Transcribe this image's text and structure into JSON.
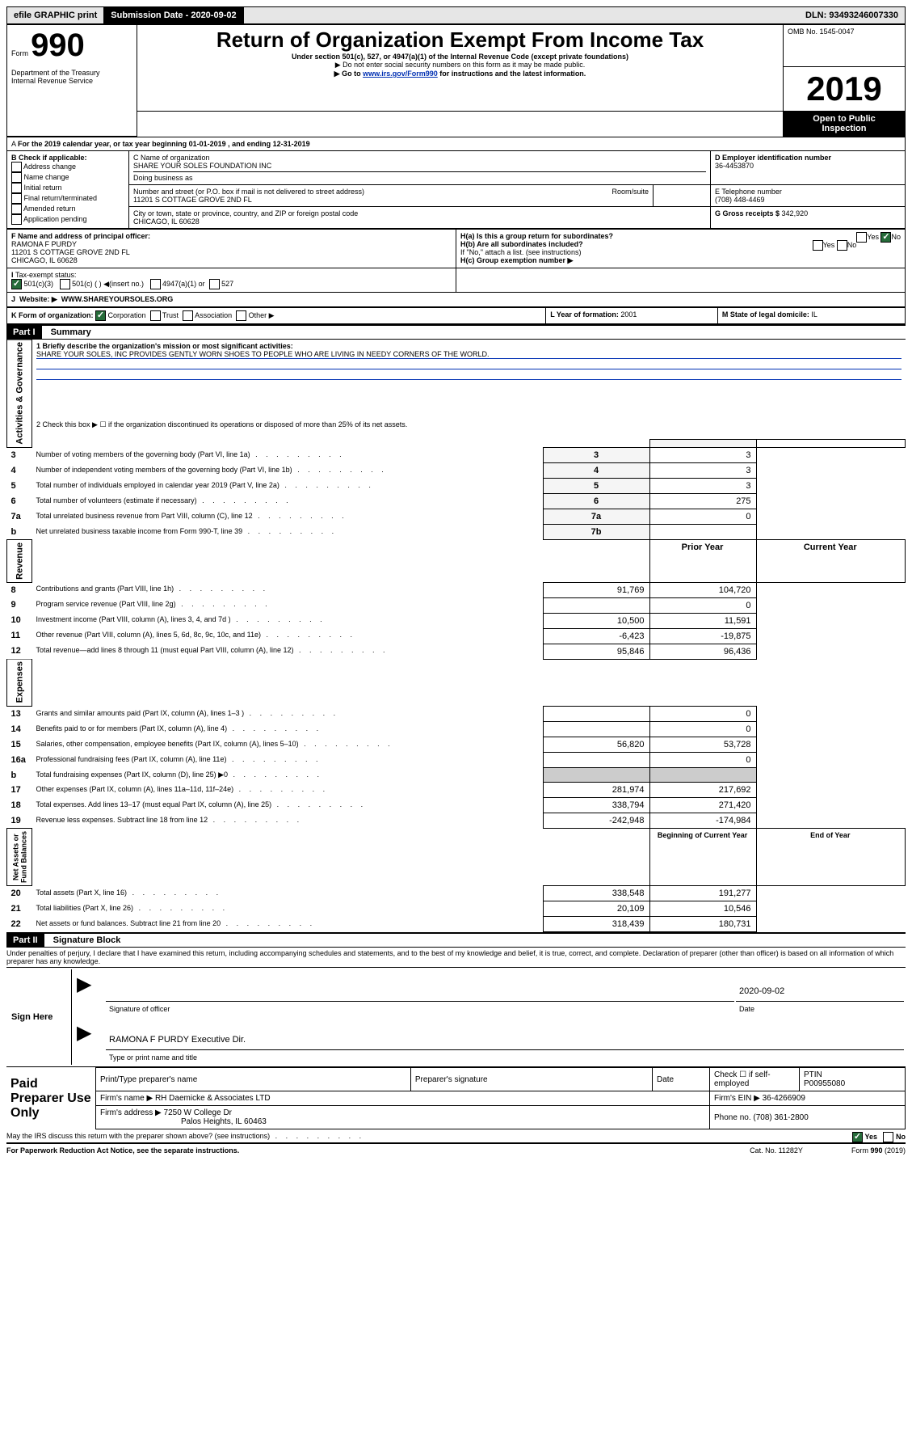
{
  "topbar": {
    "efile": "efile GRAPHIC print",
    "subdate_label": "Submission Date - ",
    "subdate": "2020-09-02",
    "dln_label": "DLN: ",
    "dln": "93493246007330"
  },
  "header": {
    "form_label": "Form",
    "form_number": "990",
    "dept": "Department of the Treasury\nInternal Revenue Service",
    "title": "Return of Organization Exempt From Income Tax",
    "subtitle": "Under section 501(c), 527, or 4947(a)(1) of the Internal Revenue Code (except private foundations)",
    "note1": "▶ Do not enter social security numbers on this form as it may be made public.",
    "note2_pre": "▶ Go to ",
    "note2_link": "www.irs.gov/Form990",
    "note2_post": " for instructions and the latest information.",
    "omb": "OMB No. 1545-0047",
    "year": "2019",
    "inspection": "Open to Public\nInspection"
  },
  "sectionA": {
    "line": "For the 2019 calendar year, or tax year beginning 01-01-2019   , and ending 12-31-2019",
    "b_label": "B Check if applicable:",
    "b_opts": [
      "Address change",
      "Name change",
      "Initial return",
      "Final return/terminated",
      "Amended return",
      "Application pending"
    ],
    "c_label": "C Name of organization",
    "c_name": "SHARE YOUR SOLES FOUNDATION INC",
    "dba_label": "Doing business as",
    "addr_label": "Number and street (or P.O. box if mail is not delivered to street address)",
    "room_label": "Room/suite",
    "addr": "11201 S COTTAGE GROVE 2ND FL",
    "city_label": "City or town, state or province, country, and ZIP or foreign postal code",
    "city": "CHICAGO, IL  60628",
    "d_label": "D Employer identification number",
    "d_val": "36-4453870",
    "e_label": "E Telephone number",
    "e_val": "(708) 448-4469",
    "g_label": "G Gross receipts $ ",
    "g_val": "342,920",
    "f_label": "F  Name and address of principal officer:",
    "f_name": "RAMONA F PURDY",
    "f_addr1": "11201 S COTTAGE GROVE 2ND FL",
    "f_addr2": "CHICAGO, IL  60628",
    "ha_label": "H(a)  Is this a group return for subordinates?",
    "hb_label": "H(b)  Are all subordinates included?",
    "hb_note": "If \"No,\" attach a list. (see instructions)",
    "hc_label": "H(c)  Group exemption number ▶",
    "i_label": "Tax-exempt status:",
    "i_501c3": "501(c)(3)",
    "i_501c": "501(c) (  ) ◀(insert no.)",
    "i_4947": "4947(a)(1) or",
    "i_527": "527",
    "j_label": "Website: ▶",
    "j_val": "WWW.SHAREYOURSOLES.ORG",
    "k_label": "K Form of organization:",
    "k_opts": [
      "Corporation",
      "Trust",
      "Association",
      "Other ▶"
    ],
    "l_label": "L Year of formation: ",
    "l_val": "2001",
    "m_label": "M State of legal domicile: ",
    "m_val": "IL"
  },
  "part1": {
    "header": "Part I",
    "title": "Summary",
    "q1_label": "1  Briefly describe the organization's mission or most significant activities:",
    "q1_text": "SHARE YOUR SOLES, INC PROVIDES GENTLY WORN SHOES TO PEOPLE WHO ARE LIVING IN NEEDY CORNERS OF THE WORLD.",
    "q2": "2   Check this box ▶ ☐  if the organization discontinued its operations or disposed of more than 25% of its net assets.",
    "lines_governance": [
      {
        "n": "3",
        "label": "Number of voting members of the governing body (Part VI, line 1a)",
        "box": "3",
        "val": "3"
      },
      {
        "n": "4",
        "label": "Number of independent voting members of the governing body (Part VI, line 1b)",
        "box": "4",
        "val": "3"
      },
      {
        "n": "5",
        "label": "Total number of individuals employed in calendar year 2019 (Part V, line 2a)",
        "box": "5",
        "val": "3"
      },
      {
        "n": "6",
        "label": "Total number of volunteers (estimate if necessary)",
        "box": "6",
        "val": "275"
      },
      {
        "n": "7a",
        "label": "Total unrelated business revenue from Part VIII, column (C), line 12",
        "box": "7a",
        "val": "0"
      },
      {
        "n": "b",
        "label": "Net unrelated business taxable income from Form 990-T, line 39",
        "box": "7b",
        "val": ""
      }
    ],
    "col_prior": "Prior Year",
    "col_current": "Current Year",
    "lines_revenue": [
      {
        "n": "8",
        "label": "Contributions and grants (Part VIII, line 1h)",
        "prior": "91,769",
        "cur": "104,720"
      },
      {
        "n": "9",
        "label": "Program service revenue (Part VIII, line 2g)",
        "prior": "",
        "cur": "0"
      },
      {
        "n": "10",
        "label": "Investment income (Part VIII, column (A), lines 3, 4, and 7d )",
        "prior": "10,500",
        "cur": "11,591"
      },
      {
        "n": "11",
        "label": "Other revenue (Part VIII, column (A), lines 5, 6d, 8c, 9c, 10c, and 11e)",
        "prior": "-6,423",
        "cur": "-19,875"
      },
      {
        "n": "12",
        "label": "Total revenue—add lines 8 through 11 (must equal Part VIII, column (A), line 12)",
        "prior": "95,846",
        "cur": "96,436"
      }
    ],
    "lines_expenses": [
      {
        "n": "13",
        "label": "Grants and similar amounts paid (Part IX, column (A), lines 1–3 )",
        "prior": "",
        "cur": "0"
      },
      {
        "n": "14",
        "label": "Benefits paid to or for members (Part IX, column (A), line 4)",
        "prior": "",
        "cur": "0"
      },
      {
        "n": "15",
        "label": "Salaries, other compensation, employee benefits (Part IX, column (A), lines 5–10)",
        "prior": "56,820",
        "cur": "53,728"
      },
      {
        "n": "16a",
        "label": "Professional fundraising fees (Part IX, column (A), line 11e)",
        "prior": "",
        "cur": "0"
      },
      {
        "n": "b",
        "label": "Total fundraising expenses (Part IX, column (D), line 25) ▶0",
        "prior": "GRAY",
        "cur": "GRAY"
      },
      {
        "n": "17",
        "label": "Other expenses (Part IX, column (A), lines 11a–11d, 11f–24e)",
        "prior": "281,974",
        "cur": "217,692"
      },
      {
        "n": "18",
        "label": "Total expenses. Add lines 13–17 (must equal Part IX, column (A), line 25)",
        "prior": "338,794",
        "cur": "271,420"
      },
      {
        "n": "19",
        "label": "Revenue less expenses. Subtract line 18 from line 12",
        "prior": "-242,948",
        "cur": "-174,984"
      }
    ],
    "col_begin": "Beginning of Current Year",
    "col_end": "End of Year",
    "lines_net": [
      {
        "n": "20",
        "label": "Total assets (Part X, line 16)",
        "prior": "338,548",
        "cur": "191,277"
      },
      {
        "n": "21",
        "label": "Total liabilities (Part X, line 26)",
        "prior": "20,109",
        "cur": "10,546"
      },
      {
        "n": "22",
        "label": "Net assets or fund balances. Subtract line 21 from line 20",
        "prior": "318,439",
        "cur": "180,731"
      }
    ],
    "vlabels": {
      "gov": "Activities & Governance",
      "rev": "Revenue",
      "exp": "Expenses",
      "net": "Net Assets or\nFund Balances"
    }
  },
  "part2": {
    "header": "Part II",
    "title": "Signature Block",
    "perjury": "Under penalties of perjury, I declare that I have examined this return, including accompanying schedules and statements, and to the best of my knowledge and belief, it is true, correct, and complete. Declaration of preparer (other than officer) is based on all information of which preparer has any knowledge.",
    "sign_here": "Sign Here",
    "sig_date": "2020-09-02",
    "sig_label": "Signature of officer",
    "date_label": "Date",
    "officer_name": "RAMONA F PURDY  Executive Dir.",
    "officer_label": "Type or print name and title",
    "paid": "Paid Preparer Use Only",
    "prep_name_label": "Print/Type preparer's name",
    "prep_sig_label": "Preparer's signature",
    "prep_date_label": "Date",
    "prep_check_label": "Check ☐ if self-employed",
    "ptin_label": "PTIN",
    "ptin": "P00955080",
    "firm_name_label": "Firm's name    ▶ ",
    "firm_name": "RH Daemicke & Associates LTD",
    "firm_ein_label": "Firm's EIN ▶ ",
    "firm_ein": "36-4266909",
    "firm_addr_label": "Firm's address ▶ ",
    "firm_addr1": "7250 W College Dr",
    "firm_addr2": "Palos Heights, IL  60463",
    "phone_label": "Phone no. ",
    "phone": "(708) 361-2800",
    "discuss": "May the IRS discuss this return with the preparer shown above? (see instructions)",
    "yes": "Yes",
    "no": "No"
  },
  "footer": {
    "paperwork": "For Paperwork Reduction Act Notice, see the separate instructions.",
    "catno": "Cat. No. 11282Y",
    "formno": "Form 990 (2019)"
  }
}
